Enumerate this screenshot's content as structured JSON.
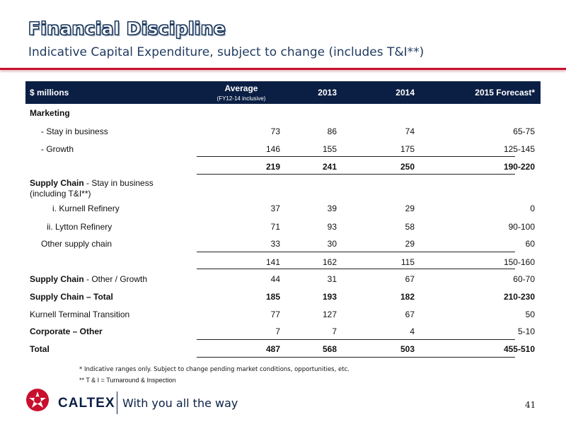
{
  "title": "Financial Discipline",
  "subtitle": "Indicative Capital Expenditure, subject to change (includes T&I**)",
  "table": {
    "header": {
      "label": "$ millions",
      "average": "Average",
      "average_sub": "(FY12-14 inclusive)",
      "y2013": "2013",
      "y2014": "2014",
      "y2015": "2015 Forecast*"
    },
    "rows": [
      {
        "label": "Marketing",
        "avg": "",
        "y2013": "",
        "y2014": "",
        "y2015": ""
      },
      {
        "label": "- Stay in business",
        "avg": "73",
        "y2013": "86",
        "y2014": "74",
        "y2015": "65-75"
      },
      {
        "label": "- Growth",
        "avg": "146",
        "y2013": "155",
        "y2014": "175",
        "y2015": "125-145"
      },
      {
        "label": "",
        "avg": "219",
        "y2013": "241",
        "y2014": "250",
        "y2015": "190-220"
      },
      {
        "label": "Supply Chain",
        "label_tail": " - Stay in business",
        "label_line2": "(including T&I**)"
      },
      {
        "label": "i. Kurnell Refinery",
        "avg": "37",
        "y2013": "39",
        "y2014": "29",
        "y2015": "0"
      },
      {
        "label": "ii. Lytton Refinery",
        "avg": "71",
        "y2013": "93",
        "y2014": "58",
        "y2015": "90-100"
      },
      {
        "label": "Other supply chain",
        "avg": "33",
        "y2013": "30",
        "y2014": "29",
        "y2015": "60"
      },
      {
        "label": "",
        "avg": "141",
        "y2013": "162",
        "y2014": "115",
        "y2015": "150-160"
      },
      {
        "label": "Supply Chain",
        "label_tail": " - Other / Growth",
        "avg": "44",
        "y2013": "31",
        "y2014": "67",
        "y2015": "60-70"
      },
      {
        "label": "Supply Chain – Total",
        "avg": "185",
        "y2013": "193",
        "y2014": "182",
        "y2015": "210-230"
      },
      {
        "label": "Kurnell Terminal Transition",
        "avg": "77",
        "y2013": "127",
        "y2014": "67",
        "y2015": "50"
      },
      {
        "label": "Corporate – Other",
        "avg": "7",
        "y2013": "7",
        "y2014": "4",
        "y2015": "5-10"
      },
      {
        "label": "Total",
        "avg": "487",
        "y2013": "568",
        "y2014": "503",
        "y2015": "455-510"
      }
    ]
  },
  "footnotes": {
    "fn1": "*   Indicative ranges only. Subject to change pending market conditions, opportunities, etc.",
    "fn2": "** T & I = Turnaround & Inspection"
  },
  "brand": {
    "name": "CALTEX",
    "tagline": "With you all the way",
    "colors": {
      "red": "#c8102e",
      "navy": "#0b1f44"
    }
  },
  "page_number": "41"
}
